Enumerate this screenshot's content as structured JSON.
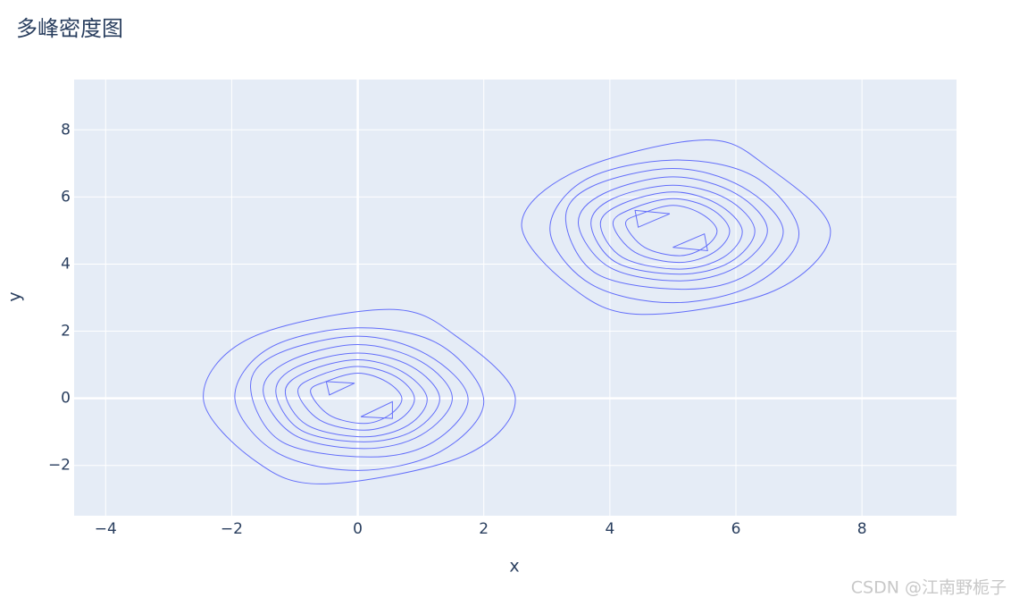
{
  "chart_data": {
    "type": "contour",
    "title": "多峰密度图",
    "x_label": "x",
    "y_label": "y",
    "watermark": "CSDN @江南野栀子",
    "color": "#636efa",
    "grid": true,
    "xlim": [
      -4.5,
      9.5
    ],
    "ylim": [
      -3.5,
      9.5
    ],
    "xticks": [
      {
        "value": -4,
        "label": "−4"
      },
      {
        "value": -2,
        "label": "−2"
      },
      0,
      2,
      4,
      6,
      8
    ],
    "yticks": [
      {
        "value": -2,
        "label": "−2"
      },
      0,
      2,
      4,
      6,
      8
    ],
    "contours": [
      {
        "x": [
          2.5,
          1.6,
          0.5,
          -1.7,
          -2.45,
          -1.6,
          -0.5,
          1.7
        ],
        "y": [
          0,
          1.8,
          2.65,
          1.8,
          0,
          -1.9,
          -2.55,
          -1.7
        ]
      },
      {
        "x": [
          2.0,
          1.3,
          0,
          -1.4,
          -1.95,
          -1.3,
          0,
          1.3
        ],
        "y": [
          -0.1,
          1.6,
          2.1,
          1.5,
          0,
          -1.6,
          -2.15,
          -1.6
        ]
      },
      {
        "x": [
          1.75,
          1.1,
          0,
          -1.3,
          -1.7,
          -1.2,
          0.2,
          1.2
        ],
        "y": [
          0,
          1.3,
          1.85,
          1.3,
          0.3,
          -1.3,
          -1.75,
          -1.3
        ]
      },
      {
        "x": [
          1.5,
          1.0,
          0,
          -1.1,
          -1.5,
          -1.0,
          0.1,
          1.0
        ],
        "y": [
          0,
          1.1,
          1.6,
          1.1,
          0.2,
          -1.1,
          -1.5,
          -1.1
        ]
      },
      {
        "x": [
          1.3,
          0.85,
          0,
          -0.95,
          -1.3,
          -0.9,
          0.1,
          0.9
        ],
        "y": [
          0,
          0.95,
          1.35,
          0.95,
          0.2,
          -0.95,
          -1.3,
          -0.95
        ]
      },
      {
        "x": [
          1.1,
          0.7,
          0,
          -0.8,
          -1.15,
          -0.8,
          0.1,
          0.8
        ],
        "y": [
          0,
          0.8,
          1.15,
          0.8,
          0.2,
          -0.8,
          -1.15,
          -0.8
        ]
      },
      {
        "x": [
          0.9,
          0.6,
          0,
          -0.65,
          -0.95,
          -0.6,
          0.1,
          0.65
        ],
        "y": [
          0,
          0.65,
          0.95,
          0.65,
          0.2,
          -0.65,
          -0.95,
          -0.65
        ]
      },
      {
        "x": [
          0.7,
          0.45,
          0,
          -0.5,
          -0.75,
          -0.45,
          0.1,
          0.5
        ],
        "y": [
          0,
          0.5,
          0.75,
          0.5,
          0.2,
          -0.5,
          -0.75,
          -0.5
        ]
      },
      {
        "x": [
          -0.5,
          -0.05,
          -0.45
        ],
        "y": [
          0.5,
          0.45,
          0.1
        ]
      },
      {
        "x": [
          0.05,
          0.55,
          0.55
        ],
        "y": [
          -0.55,
          -0.1,
          -0.6
        ]
      },
      {
        "x": [
          7.5,
          6.5,
          5.5,
          3.5,
          2.6,
          3.4,
          4.5,
          6.6
        ],
        "y": [
          5,
          6.9,
          7.7,
          6.8,
          5.2,
          3.3,
          2.5,
          3.2
        ]
      },
      {
        "x": [
          7.0,
          6.3,
          5.0,
          3.6,
          3.05,
          3.7,
          5.0,
          6.3
        ],
        "y": [
          4.9,
          6.6,
          7.1,
          6.5,
          5.0,
          3.4,
          2.85,
          3.4
        ]
      },
      {
        "x": [
          6.75,
          6.1,
          5.0,
          3.7,
          3.3,
          3.8,
          5.2,
          6.2
        ],
        "y": [
          5.0,
          6.3,
          6.85,
          6.3,
          5.3,
          3.7,
          3.25,
          3.7
        ]
      },
      {
        "x": [
          6.5,
          6.0,
          5.0,
          3.9,
          3.5,
          4.0,
          5.1,
          6.0
        ],
        "y": [
          5,
          6.1,
          6.6,
          6.1,
          5.2,
          3.9,
          3.5,
          3.9
        ]
      },
      {
        "x": [
          6.3,
          5.85,
          5.0,
          4.05,
          3.7,
          4.1,
          5.1,
          5.9
        ],
        "y": [
          5,
          5.95,
          6.35,
          5.95,
          5.2,
          4.05,
          3.7,
          4.05
        ]
      },
      {
        "x": [
          6.1,
          5.7,
          5.0,
          4.2,
          3.85,
          4.2,
          5.1,
          5.8
        ],
        "y": [
          5,
          5.8,
          6.15,
          5.8,
          5.2,
          4.2,
          3.85,
          4.2
        ]
      },
      {
        "x": [
          5.9,
          5.6,
          5.0,
          4.35,
          4.05,
          4.4,
          5.1,
          5.65
        ],
        "y": [
          5,
          5.65,
          5.95,
          5.65,
          5.2,
          4.35,
          4.05,
          4.35
        ]
      },
      {
        "x": [
          5.7,
          5.45,
          5.0,
          4.5,
          4.25,
          4.55,
          5.1,
          5.5
        ],
        "y": [
          5,
          5.5,
          5.75,
          5.5,
          5.2,
          4.5,
          4.25,
          4.5
        ]
      },
      {
        "x": [
          4.4,
          4.95,
          4.45
        ],
        "y": [
          5.6,
          5.5,
          5.1
        ]
      },
      {
        "x": [
          5.0,
          5.5,
          5.55
        ],
        "y": [
          4.5,
          4.9,
          4.4
        ]
      }
    ]
  }
}
